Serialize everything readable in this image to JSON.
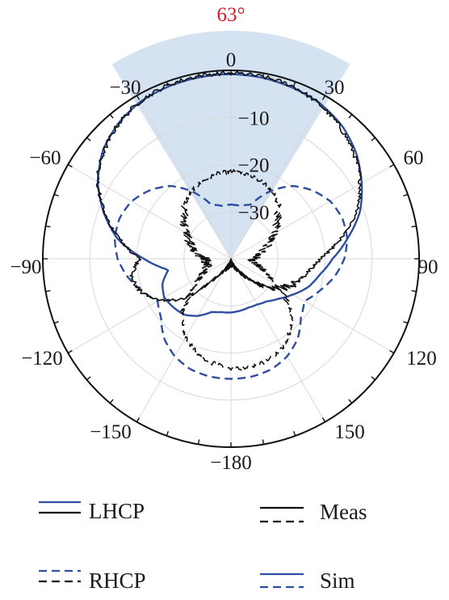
{
  "chart_data": {
    "type": "polar-line",
    "unit_radial": "dB",
    "radial_range": [
      -40,
      0
    ],
    "radial_ticks": [
      0,
      -10,
      -20,
      -30
    ],
    "radial_tick_labels": [
      "0",
      "−10",
      "−20",
      "−30"
    ],
    "angle_ticks": [
      0,
      30,
      60,
      90,
      120,
      150,
      180,
      -150,
      -120,
      -90,
      -60,
      -30
    ],
    "angle_tick_labels": [
      "0",
      "30",
      "60",
      "90",
      "120",
      "150",
      "−180",
      "−150",
      "−120",
      "−90",
      "−60",
      "−30"
    ],
    "grid": true,
    "beamwidth": {
      "label": "63°",
      "from_deg": -31.5,
      "to_deg": 31.5,
      "color": "#c6d8ee"
    },
    "colors": {
      "meas": "#111111",
      "sim": "#2f4ea0",
      "beam_label": "#d11a2a"
    },
    "series": [
      {
        "name": "LHCP Meas",
        "style": "solid",
        "color": "#111111",
        "noisy": true,
        "points": [
          [
            0,
            -0.6
          ],
          [
            10,
            -0.8
          ],
          [
            20,
            -1.1
          ],
          [
            30,
            -2.2
          ],
          [
            40,
            -3.7
          ],
          [
            50,
            -5.7
          ],
          [
            60,
            -8.2
          ],
          [
            70,
            -11.5
          ],
          [
            80,
            -16.5
          ],
          [
            90,
            -21
          ],
          [
            100,
            -23.5
          ],
          [
            110,
            -25
          ],
          [
            120,
            -27.5
          ],
          [
            130,
            -31
          ],
          [
            140,
            -35
          ],
          [
            150,
            -37.5
          ],
          [
            160,
            -38.5
          ],
          [
            170,
            -39
          ],
          [
            180,
            -39.5
          ],
          [
            190,
            -39
          ],
          [
            200,
            -38.5
          ],
          [
            210,
            -37.5
          ],
          [
            220,
            -34.5
          ],
          [
            230,
            -27
          ],
          [
            240,
            -22.5
          ],
          [
            250,
            -19.5
          ],
          [
            260,
            -18.5
          ],
          [
            270,
            -20.5
          ],
          [
            280,
            -16
          ],
          [
            290,
            -11.5
          ],
          [
            300,
            -7.2
          ],
          [
            310,
            -4.7
          ],
          [
            320,
            -2.7
          ],
          [
            330,
            -1.4
          ],
          [
            340,
            -0.8
          ],
          [
            350,
            -0.6
          ],
          [
            360,
            -0.6
          ]
        ]
      },
      {
        "name": "LHCP Sim",
        "style": "solid",
        "color": "#2f4ea0",
        "noisy": false,
        "points": [
          [
            0,
            -0.8
          ],
          [
            10,
            -1.0
          ],
          [
            20,
            -1.4
          ],
          [
            30,
            -2.0
          ],
          [
            40,
            -3.2
          ],
          [
            50,
            -5.2
          ],
          [
            60,
            -7.9
          ],
          [
            70,
            -10.8
          ],
          [
            80,
            -14.8
          ],
          [
            90,
            -18.4
          ],
          [
            100,
            -20.8
          ],
          [
            110,
            -22.5
          ],
          [
            120,
            -24.8
          ],
          [
            130,
            -26.8
          ],
          [
            140,
            -28.2
          ],
          [
            150,
            -28.8
          ],
          [
            160,
            -29.0
          ],
          [
            170,
            -28.8
          ],
          [
            180,
            -28.6
          ],
          [
            190,
            -28.5
          ],
          [
            200,
            -28.0
          ],
          [
            210,
            -26.0
          ],
          [
            220,
            -24.5
          ],
          [
            230,
            -24.0
          ],
          [
            240,
            -23.6
          ],
          [
            250,
            -24.5
          ],
          [
            260,
            -26.5
          ],
          [
            270,
            -21.5
          ],
          [
            280,
            -15.5
          ],
          [
            290,
            -11.2
          ],
          [
            300,
            -7.3
          ],
          [
            310,
            -4.4
          ],
          [
            320,
            -2.6
          ],
          [
            330,
            -1.5
          ],
          [
            340,
            -1.1
          ],
          [
            350,
            -0.9
          ],
          [
            360,
            -0.8
          ]
        ]
      },
      {
        "name": "RHCP Meas",
        "style": "dashed",
        "color": "#111111",
        "noisy": true,
        "points": [
          [
            0,
            -21.5
          ],
          [
            10,
            -21.8
          ],
          [
            20,
            -22.3
          ],
          [
            30,
            -23.0
          ],
          [
            40,
            -24.5
          ],
          [
            50,
            -27.0
          ],
          [
            60,
            -29.5
          ],
          [
            70,
            -31.8
          ],
          [
            80,
            -33.8
          ],
          [
            90,
            -35.3
          ],
          [
            100,
            -35.0
          ],
          [
            110,
            -32.8
          ],
          [
            120,
            -29.0
          ],
          [
            130,
            -23.5
          ],
          [
            140,
            -20.3
          ],
          [
            150,
            -18.2
          ],
          [
            160,
            -17.0
          ],
          [
            170,
            -16.6
          ],
          [
            180,
            -16.8
          ],
          [
            190,
            -17.5
          ],
          [
            200,
            -18.8
          ],
          [
            210,
            -20.8
          ],
          [
            220,
            -23.8
          ],
          [
            230,
            -28.5
          ],
          [
            240,
            -33.0
          ],
          [
            250,
            -34.5
          ],
          [
            260,
            -35.0
          ],
          [
            270,
            -34.5
          ],
          [
            280,
            -32.5
          ],
          [
            290,
            -30.8
          ],
          [
            300,
            -29.0
          ],
          [
            310,
            -27.0
          ],
          [
            320,
            -24.8
          ],
          [
            330,
            -23.3
          ],
          [
            340,
            -22.5
          ],
          [
            350,
            -21.8
          ],
          [
            360,
            -21.5
          ]
        ]
      },
      {
        "name": "RHCP Sim",
        "style": "dashed",
        "color": "#2f4ea0",
        "noisy": false,
        "points": [
          [
            0,
            -28.5
          ],
          [
            10,
            -28.6
          ],
          [
            20,
            -27.8
          ],
          [
            30,
            -23.5
          ],
          [
            40,
            -19.8
          ],
          [
            50,
            -17.4
          ],
          [
            60,
            -15.6
          ],
          [
            70,
            -14.8
          ],
          [
            80,
            -14.9
          ],
          [
            90,
            -15.9
          ],
          [
            100,
            -17.7
          ],
          [
            110,
            -20.0
          ],
          [
            120,
            -22.0
          ],
          [
            130,
            -20.6
          ],
          [
            140,
            -17.9
          ],
          [
            150,
            -16.1
          ],
          [
            160,
            -15.0
          ],
          [
            170,
            -14.6
          ],
          [
            180,
            -14.5
          ],
          [
            190,
            -14.6
          ],
          [
            200,
            -15.0
          ],
          [
            210,
            -16.1
          ],
          [
            220,
            -17.9
          ],
          [
            230,
            -20.6
          ],
          [
            240,
            -22.0
          ],
          [
            250,
            -20.0
          ],
          [
            260,
            -17.7
          ],
          [
            270,
            -15.9
          ],
          [
            280,
            -14.9
          ],
          [
            290,
            -14.8
          ],
          [
            300,
            -15.6
          ],
          [
            310,
            -17.4
          ],
          [
            320,
            -19.8
          ],
          [
            330,
            -23.5
          ],
          [
            340,
            -27.8
          ],
          [
            350,
            -28.6
          ],
          [
            360,
            -28.5
          ]
        ]
      }
    ]
  },
  "legend": {
    "row1_left": "LHCP",
    "row1_right": "Meas",
    "row2_left": "RHCP",
    "row2_right": "Sim"
  }
}
